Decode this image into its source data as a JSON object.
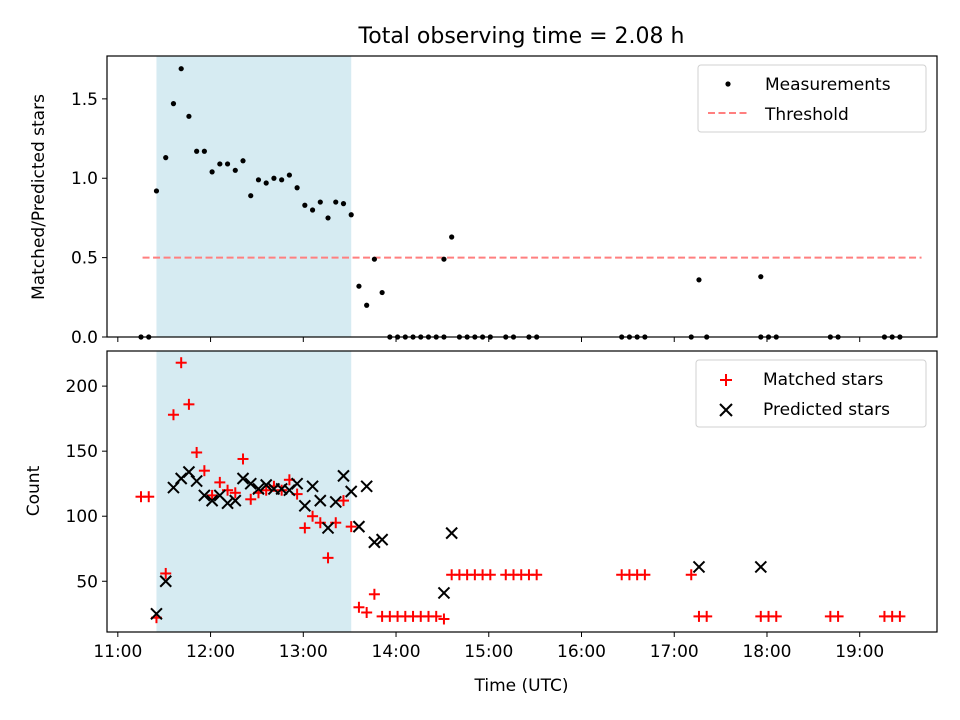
{
  "title": "Total observing time = 2.08 h",
  "xlabel": "Time (UTC)",
  "colors": {
    "highlight": "#add8e6",
    "measurements": "#000000",
    "threshold": "#ff7f7f",
    "matched": "#ff0000",
    "predicted": "#000000"
  },
  "chart_data": [
    {
      "type": "scatter",
      "ylabel": "Matched/Predicted stars",
      "xlim": [
        "10:53",
        "19:50"
      ],
      "ylim": [
        0,
        1.77
      ],
      "yticks": [
        0.0,
        0.5,
        1.0,
        1.5
      ],
      "ytick_labels": [
        "0.0",
        "0.5",
        "1.0",
        "1.5"
      ],
      "legend_position": "upper right",
      "highlight_span": [
        "11:25",
        "13:31"
      ],
      "legend": [
        "Measurements",
        "Threshold"
      ],
      "threshold": {
        "name": "Threshold",
        "value": 0.5,
        "x_range": [
          "11:16",
          "19:40"
        ]
      },
      "series": [
        {
          "name": "Measurements",
          "marker": "point",
          "points": [
            [
              "11:15",
              0
            ],
            [
              "11:20",
              0
            ],
            [
              "11:25",
              0.92
            ],
            [
              "11:31",
              1.13
            ],
            [
              "11:36",
              1.47
            ],
            [
              "11:41",
              1.69
            ],
            [
              "11:46",
              1.39
            ],
            [
              "11:51",
              1.17
            ],
            [
              "11:56",
              1.17
            ],
            [
              "12:01",
              1.04
            ],
            [
              "12:06",
              1.09
            ],
            [
              "12:11",
              1.09
            ],
            [
              "12:16",
              1.05
            ],
            [
              "12:21",
              1.11
            ],
            [
              "12:26",
              0.89
            ],
            [
              "12:31",
              0.99
            ],
            [
              "12:36",
              0.97
            ],
            [
              "12:41",
              1.0
            ],
            [
              "12:46",
              0.99
            ],
            [
              "12:51",
              1.02
            ],
            [
              "12:56",
              0.94
            ],
            [
              "13:01",
              0.83
            ],
            [
              "13:06",
              0.8
            ],
            [
              "13:11",
              0.85
            ],
            [
              "13:16",
              0.75
            ],
            [
              "13:21",
              0.85
            ],
            [
              "13:26",
              0.84
            ],
            [
              "13:31",
              0.77
            ],
            [
              "13:36",
              0.32
            ],
            [
              "13:41",
              0.2
            ],
            [
              "13:46",
              0.49
            ],
            [
              "13:51",
              0.28
            ],
            [
              "13:56",
              0
            ],
            [
              "14:01",
              0
            ],
            [
              "14:06",
              0
            ],
            [
              "14:11",
              0
            ],
            [
              "14:16",
              0
            ],
            [
              "14:21",
              0
            ],
            [
              "14:26",
              0
            ],
            [
              "14:31",
              0
            ],
            [
              "14:31",
              0.49
            ],
            [
              "14:36",
              0.63
            ],
            [
              "14:41",
              0
            ],
            [
              "14:46",
              0
            ],
            [
              "14:51",
              0
            ],
            [
              "14:56",
              0
            ],
            [
              "15:01",
              0
            ],
            [
              "15:11",
              0
            ],
            [
              "15:16",
              0
            ],
            [
              "15:26",
              0
            ],
            [
              "15:31",
              0
            ],
            [
              "16:26",
              0
            ],
            [
              "16:31",
              0
            ],
            [
              "16:36",
              0
            ],
            [
              "16:41",
              0
            ],
            [
              "17:11",
              0
            ],
            [
              "17:16",
              0.36
            ],
            [
              "17:21",
              0
            ],
            [
              "17:56",
              0
            ],
            [
              "17:56",
              0.38
            ],
            [
              "18:01",
              0
            ],
            [
              "18:06",
              0
            ],
            [
              "18:41",
              0
            ],
            [
              "18:46",
              0
            ],
            [
              "19:16",
              0
            ],
            [
              "19:21",
              0
            ],
            [
              "19:26",
              0
            ]
          ]
        }
      ]
    },
    {
      "type": "scatter",
      "ylabel": "Count",
      "xlim": [
        "10:53",
        "19:50"
      ],
      "ylim": [
        11,
        227
      ],
      "yticks": [
        50,
        100,
        150,
        200
      ],
      "ytick_labels": [
        "50",
        "100",
        "150",
        "200"
      ],
      "xticks": [
        "11:00",
        "12:00",
        "13:00",
        "14:00",
        "15:00",
        "16:00",
        "17:00",
        "18:00",
        "19:00"
      ],
      "legend_position": "upper right",
      "highlight_span": [
        "11:25",
        "13:31"
      ],
      "legend": [
        "Matched stars",
        "Predicted stars"
      ],
      "series": [
        {
          "name": "Matched stars",
          "marker": "plus",
          "points": [
            [
              "11:15",
              115
            ],
            [
              "11:20",
              115
            ],
            [
              "11:25",
              22
            ],
            [
              "11:31",
              56
            ],
            [
              "11:36",
              178
            ],
            [
              "11:41",
              218
            ],
            [
              "11:46",
              186
            ],
            [
              "11:51",
              149
            ],
            [
              "11:56",
              135
            ],
            [
              "12:01",
              116
            ],
            [
              "12:06",
              126
            ],
            [
              "12:11",
              120
            ],
            [
              "12:16",
              118
            ],
            [
              "12:21",
              144
            ],
            [
              "12:26",
              113
            ],
            [
              "12:31",
              118
            ],
            [
              "12:36",
              120
            ],
            [
              "12:41",
              123
            ],
            [
              "12:46",
              120
            ],
            [
              "12:51",
              128
            ],
            [
              "12:56",
              117
            ],
            [
              "13:01",
              91
            ],
            [
              "13:06",
              100
            ],
            [
              "13:11",
              95
            ],
            [
              "13:16",
              68
            ],
            [
              "13:21",
              95
            ],
            [
              "13:26",
              112
            ],
            [
              "13:31",
              92
            ],
            [
              "13:36",
              30
            ],
            [
              "13:41",
              26
            ],
            [
              "13:46",
              40
            ],
            [
              "13:51",
              23
            ],
            [
              "13:56",
              23
            ],
            [
              "14:01",
              23
            ],
            [
              "14:06",
              23
            ],
            [
              "14:11",
              23
            ],
            [
              "14:16",
              23
            ],
            [
              "14:21",
              23
            ],
            [
              "14:26",
              23
            ],
            [
              "14:31",
              21
            ],
            [
              "14:36",
              55
            ],
            [
              "14:41",
              55
            ],
            [
              "14:46",
              55
            ],
            [
              "14:51",
              55
            ],
            [
              "14:56",
              55
            ],
            [
              "15:01",
              55
            ],
            [
              "15:11",
              55
            ],
            [
              "15:16",
              55
            ],
            [
              "15:21",
              55
            ],
            [
              "15:26",
              55
            ],
            [
              "15:31",
              55
            ],
            [
              "16:26",
              55
            ],
            [
              "16:31",
              55
            ],
            [
              "16:36",
              55
            ],
            [
              "16:41",
              55
            ],
            [
              "17:11",
              55
            ],
            [
              "17:16",
              23
            ],
            [
              "17:21",
              23
            ],
            [
              "17:56",
              23
            ],
            [
              "18:01",
              23
            ],
            [
              "18:06",
              23
            ],
            [
              "18:41",
              23
            ],
            [
              "18:46",
              23
            ],
            [
              "19:16",
              23
            ],
            [
              "19:21",
              23
            ],
            [
              "19:26",
              23
            ]
          ]
        },
        {
          "name": "Predicted stars",
          "marker": "x",
          "points": [
            [
              "11:25",
              25
            ],
            [
              "11:31",
              50
            ],
            [
              "11:36",
              122
            ],
            [
              "11:41",
              129
            ],
            [
              "11:46",
              134
            ],
            [
              "11:51",
              127
            ],
            [
              "11:56",
              116
            ],
            [
              "12:01",
              112
            ],
            [
              "12:06",
              116
            ],
            [
              "12:11",
              110
            ],
            [
              "12:16",
              112
            ],
            [
              "12:21",
              129
            ],
            [
              "12:26",
              125
            ],
            [
              "12:31",
              121
            ],
            [
              "12:36",
              124
            ],
            [
              "12:41",
              121
            ],
            [
              "12:46",
              121
            ],
            [
              "12:51",
              120
            ],
            [
              "12:56",
              125
            ],
            [
              "13:01",
              108
            ],
            [
              "13:06",
              123
            ],
            [
              "13:11",
              112
            ],
            [
              "13:16",
              91
            ],
            [
              "13:21",
              111
            ],
            [
              "13:26",
              131
            ],
            [
              "13:31",
              119
            ],
            [
              "13:36",
              92
            ],
            [
              "13:41",
              123
            ],
            [
              "13:46",
              80
            ],
            [
              "13:51",
              82
            ],
            [
              "14:31",
              41
            ],
            [
              "14:36",
              87
            ],
            [
              "17:16",
              61
            ],
            [
              "17:56",
              61
            ]
          ]
        }
      ]
    }
  ]
}
